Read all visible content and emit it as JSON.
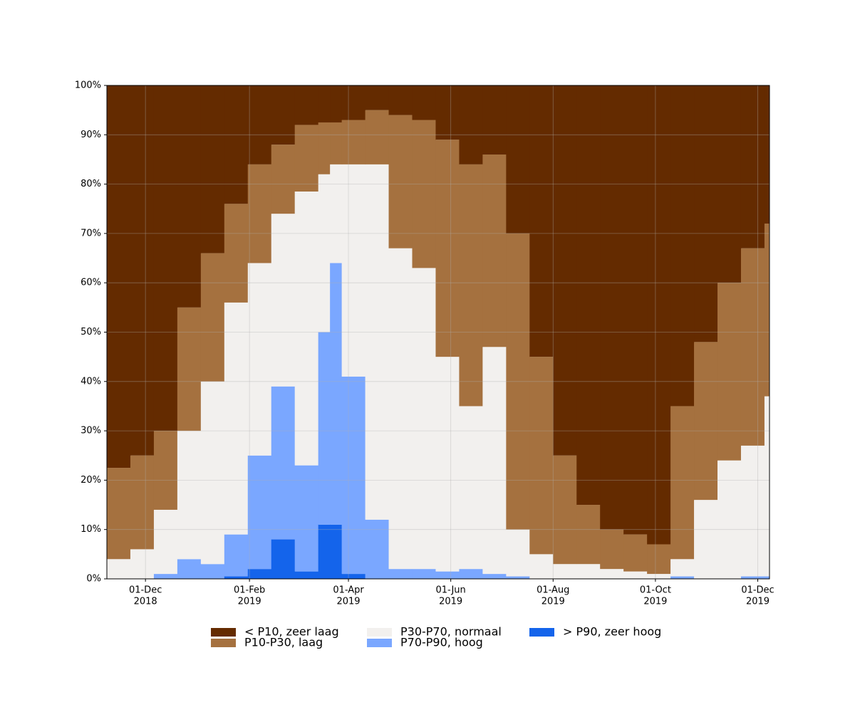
{
  "chart_data": {
    "type": "stacked-step-area",
    "x": [
      "2018-11-08",
      "2018-11-22",
      "2018-12-06",
      "2018-12-20",
      "2019-01-03",
      "2019-01-17",
      "2019-01-31",
      "2019-02-14",
      "2019-02-28",
      "2019-03-14",
      "2019-03-21",
      "2019-03-28",
      "2019-04-11",
      "2019-04-25",
      "2019-05-09",
      "2019-05-23",
      "2019-06-06",
      "2019-06-20",
      "2019-07-04",
      "2019-07-18",
      "2019-08-01",
      "2019-08-15",
      "2019-08-29",
      "2019-09-12",
      "2019-09-26",
      "2019-10-10",
      "2019-10-24",
      "2019-11-07",
      "2019-11-21",
      "2019-12-05"
    ],
    "series": [
      {
        "name": "< P10, zeer laag",
        "color": "#642b00",
        "values": [
          77.5,
          75,
          70,
          45,
          34,
          24,
          16,
          12,
          8,
          7.5,
          7.5,
          7,
          5,
          6,
          7,
          11,
          16,
          14,
          30,
          55,
          75,
          85,
          90,
          91,
          93,
          65,
          52,
          40,
          33,
          28
        ]
      },
      {
        "name": "P10-P30, laag",
        "color": "#a5713f",
        "values": [
          18.5,
          19,
          16,
          25,
          26,
          20,
          20,
          14,
          13.5,
          10.5,
          8.5,
          9,
          11,
          27,
          30,
          44,
          49,
          39,
          60,
          40,
          22,
          12,
          8,
          7.5,
          6,
          31,
          32,
          36,
          40,
          35
        ]
      },
      {
        "name": "P30-P70, normaal",
        "color": "#f2f0ee",
        "values": [
          4,
          6,
          13,
          26,
          37,
          47,
          39,
          35,
          55.5,
          32,
          20,
          43,
          72,
          65,
          61,
          43.5,
          33,
          46,
          9.5,
          5,
          3,
          3,
          2,
          1.5,
          1,
          3.5,
          16,
          24,
          26.5,
          36.5
        ]
      },
      {
        "name": "P70-P90, hoog",
        "color": "#7aa7ff",
        "values": [
          0,
          0,
          1,
          4,
          3,
          8.5,
          23,
          31,
          21.5,
          39,
          53,
          40,
          12,
          2,
          2,
          1.5,
          2,
          1,
          0.5,
          0,
          0,
          0,
          0,
          0,
          0,
          0.5,
          0,
          0,
          0.5,
          0.5
        ]
      },
      {
        "name": "> P90, zeer hoog",
        "color": "#1464eb",
        "values": [
          0,
          0,
          0,
          0,
          0,
          0.5,
          2,
          8,
          1.5,
          11,
          11,
          1,
          0,
          0,
          0,
          0,
          0,
          0,
          0,
          0,
          0,
          0,
          0,
          0,
          0,
          0,
          0,
          0,
          0,
          0
        ]
      }
    ],
    "xlim": [
      "2018-11-08",
      "2019-12-08"
    ],
    "xticks": [
      {
        "value": "2018-12-01",
        "label": [
          "01-Dec",
          "2018"
        ]
      },
      {
        "value": "2019-02-01",
        "label": [
          "01-Feb",
          "2019"
        ]
      },
      {
        "value": "2019-04-01",
        "label": [
          "01-Apr",
          "2019"
        ]
      },
      {
        "value": "2019-06-01",
        "label": [
          "01-Jun",
          "2019"
        ]
      },
      {
        "value": "2019-08-01",
        "label": [
          "01-Aug",
          "2019"
        ]
      },
      {
        "value": "2019-10-01",
        "label": [
          "01-Oct",
          "2019"
        ]
      },
      {
        "value": "2019-12-01",
        "label": [
          "01-Dec",
          "2019"
        ]
      }
    ],
    "ylim": [
      0,
      100
    ],
    "yticks": [
      {
        "value": 0,
        "label": "0%"
      },
      {
        "value": 10,
        "label": "10%"
      },
      {
        "value": 20,
        "label": "20%"
      },
      {
        "value": 30,
        "label": "30%"
      },
      {
        "value": 40,
        "label": "40%"
      },
      {
        "value": 50,
        "label": "50%"
      },
      {
        "value": 60,
        "label": "60%"
      },
      {
        "value": 70,
        "label": "70%"
      },
      {
        "value": 80,
        "label": "80%"
      },
      {
        "value": 90,
        "label": "90%"
      },
      {
        "value": 100,
        "label": "100%"
      }
    ],
    "grid": true,
    "legend": "bottom"
  }
}
